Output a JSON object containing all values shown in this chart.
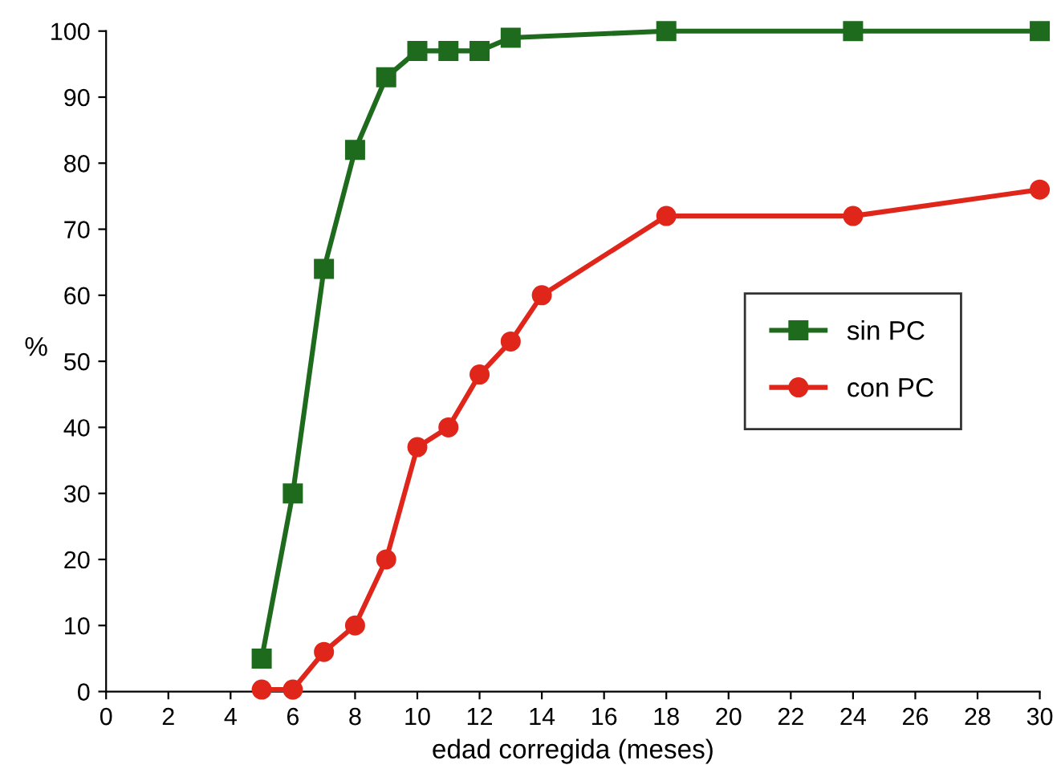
{
  "chart_data": {
    "type": "line",
    "xlabel": "edad corregida (meses)",
    "ylabel": "%",
    "xlim": [
      0,
      30
    ],
    "xticks": [
      0,
      2,
      4,
      6,
      8,
      10,
      12,
      14,
      16,
      18,
      20,
      22,
      24,
      26,
      28,
      30
    ],
    "ylim": [
      0,
      100
    ],
    "yticks": [
      0,
      10,
      20,
      30,
      40,
      50,
      60,
      70,
      80,
      90,
      100
    ],
    "legend": "right",
    "grid": false,
    "series": [
      {
        "name": "sin PC",
        "color": "#1e6b1e",
        "marker": "square",
        "x": [
          5,
          6,
          7,
          8,
          9,
          10,
          11,
          12,
          13,
          18,
          24,
          30
        ],
        "values": [
          5,
          30,
          64,
          82,
          93,
          97,
          97,
          97,
          99,
          100,
          100,
          100
        ]
      },
      {
        "name": "con PC",
        "color": "#e0261a",
        "marker": "circle",
        "x": [
          5,
          6,
          7,
          8,
          9,
          10,
          11,
          12,
          13,
          14,
          18,
          24,
          30
        ],
        "values": [
          0.3,
          0.3,
          6,
          10,
          20,
          37,
          40,
          48,
          53,
          60,
          72,
          72,
          76
        ]
      }
    ]
  }
}
